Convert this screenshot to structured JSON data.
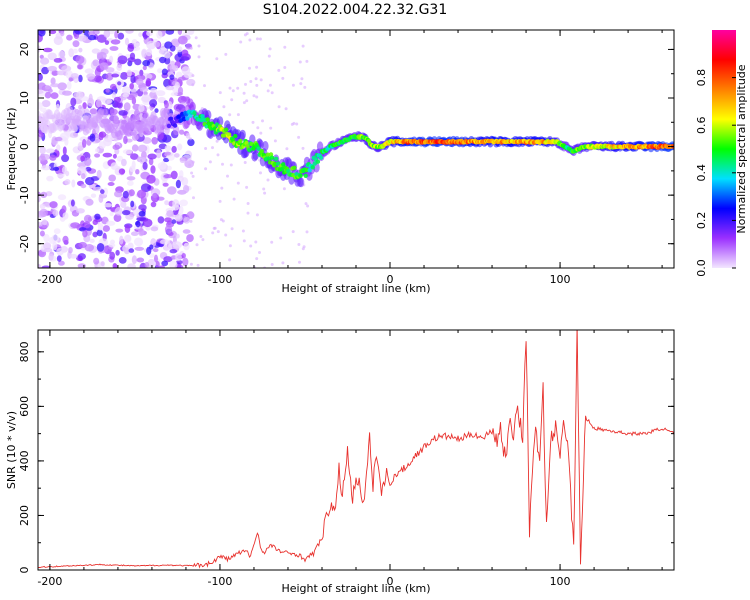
{
  "title": "S104.2022.004.22.32.G31",
  "chart_data": [
    {
      "type": "heatmap",
      "xlabel": "Height of straight line (km)",
      "ylabel": "Frequency (Hz)",
      "xlim": [
        -207,
        167
      ],
      "ylim": [
        -25,
        24
      ],
      "xticks": [
        "-200",
        "-100",
        "0",
        "100"
      ],
      "xtick_values": [
        -200,
        -100,
        0,
        100
      ],
      "yticks": [
        "20",
        "10",
        "0",
        "-10",
        "-20"
      ],
      "ytick_values": [
        20,
        10,
        0,
        -10,
        -20
      ],
      "colorbar": {
        "label": "Normalized spectral amplitude",
        "range": [
          0,
          1
        ],
        "ticks": [
          "0.0",
          "0.2",
          "0.4",
          "0.6",
          "0.8"
        ],
        "tick_values": [
          0.0,
          0.2,
          0.4,
          0.6,
          0.8
        ],
        "colors": [
          "#f3e6ff",
          "#9b30ff",
          "#0000ff",
          "#00e0ff",
          "#00ff00",
          "#ffff00",
          "#ff8000",
          "#ff0000",
          "#ff00a0"
        ]
      },
      "ridge": {
        "x": [
          -207,
          -190,
          -170,
          -155,
          -140,
          -125,
          -118,
          -112,
          -105,
          -98,
          -90,
          -80,
          -72,
          -65,
          -58,
          -52,
          -47,
          -42,
          -35,
          -28,
          -22,
          -15,
          -10,
          -5,
          0,
          10,
          25,
          45,
          55,
          62,
          70,
          80,
          90,
          98,
          103,
          107,
          115,
          130,
          150,
          167
        ],
        "freq": [
          5,
          6,
          5,
          4,
          5,
          5,
          7,
          6,
          4,
          3,
          1,
          0,
          -2,
          -4,
          -5,
          -6,
          -4,
          -2,
          0,
          1,
          2,
          2,
          0,
          0,
          1,
          1,
          1,
          1,
          1,
          1,
          1,
          1,
          1,
          1,
          0,
          -1,
          0,
          0,
          0,
          0
        ],
        "amp": [
          0.05,
          0.1,
          0.15,
          0.2,
          0.15,
          0.2,
          0.35,
          0.45,
          0.5,
          0.55,
          0.55,
          0.5,
          0.5,
          0.5,
          0.5,
          0.5,
          0.45,
          0.45,
          0.45,
          0.5,
          0.5,
          0.55,
          0.55,
          0.55,
          0.65,
          0.75,
          0.78,
          0.75,
          0.7,
          0.72,
          0.7,
          0.7,
          0.7,
          0.6,
          0.45,
          0.5,
          0.55,
          0.65,
          0.75,
          0.8
        ]
      }
    },
    {
      "type": "line",
      "xlabel": "Height of straight line (km)",
      "ylabel": "SNR (10 * v/v)",
      "xlim": [
        -207,
        167
      ],
      "ylim": [
        0,
        880
      ],
      "xticks": [
        "-200",
        "-100",
        "0",
        "100"
      ],
      "xtick_values": [
        -200,
        -100,
        0,
        100
      ],
      "yticks": [
        "0",
        "200",
        "400",
        "600",
        "800"
      ],
      "ytick_values": [
        0,
        200,
        400,
        600,
        800
      ],
      "series": [
        {
          "color": "#e8322e",
          "x": [
            -207,
            -190,
            -170,
            -150,
            -130,
            -115,
            -105,
            -100,
            -95,
            -90,
            -85,
            -82,
            -78,
            -75,
            -70,
            -65,
            -60,
            -55,
            -50,
            -45,
            -40,
            -38,
            -35,
            -32,
            -30,
            -28,
            -25,
            -22,
            -20,
            -15,
            -12,
            -10,
            -8,
            -5,
            -2,
            0,
            5,
            10,
            15,
            20,
            25,
            30,
            35,
            40,
            45,
            50,
            55,
            60,
            63,
            65,
            68,
            70,
            72,
            75,
            78,
            80,
            82,
            85,
            88,
            90,
            92,
            95,
            98,
            100,
            102,
            105,
            108,
            110,
            112,
            115,
            120,
            130,
            140,
            150,
            160,
            167
          ],
          "y": [
            10,
            15,
            20,
            15,
            18,
            15,
            25,
            50,
            40,
            60,
            70,
            50,
            140,
            60,
            90,
            70,
            60,
            60,
            40,
            60,
            120,
            170,
            250,
            200,
            380,
            260,
            450,
            250,
            350,
            250,
            480,
            300,
            440,
            280,
            350,
            320,
            360,
            380,
            420,
            450,
            480,
            490,
            490,
            480,
            490,
            500,
            480,
            520,
            470,
            530,
            390,
            560,
            480,
            600,
            490,
            870,
            150,
            510,
            420,
            660,
            160,
            490,
            520,
            440,
            560,
            420,
            70,
            880,
            40,
            560,
            520,
            510,
            500,
            500,
            520,
            500
          ]
        }
      ]
    }
  ]
}
